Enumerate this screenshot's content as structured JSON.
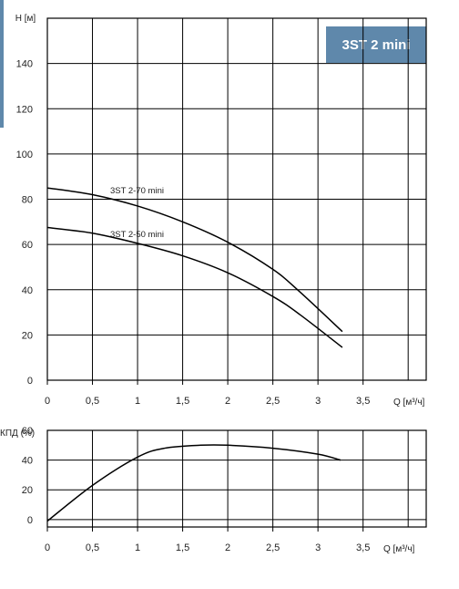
{
  "badge": {
    "label": "3ST 2 mini",
    "color": "#5f88ab"
  },
  "chart_data": [
    {
      "type": "line",
      "ylabel": "H [м]",
      "xlabel": "Q [м³/ч]",
      "xlim": [
        0,
        4.2
      ],
      "ylim": [
        0,
        160
      ],
      "x_ticks": [
        0,
        0.5,
        1,
        1.5,
        2,
        2.5,
        3,
        3.5
      ],
      "x_tick_labels": [
        "0",
        "0,5",
        "1",
        "1,5",
        "2",
        "2,5",
        "3",
        "3,5"
      ],
      "y_ticks": [
        0,
        20,
        40,
        60,
        80,
        100,
        120,
        140
      ],
      "y_tick_labels": [
        "0",
        "20",
        "40",
        "60",
        "80",
        "100",
        "120",
        "140"
      ],
      "grid": true,
      "series": [
        {
          "name": "3ST 2-70 mini",
          "x": [
            0,
            0.5,
            1,
            1.5,
            2,
            2.5,
            2.8,
            3.27
          ],
          "y": [
            85,
            82,
            77,
            70,
            61,
            49,
            39,
            21.5
          ]
        },
        {
          "name": "3ST 2-50 mini",
          "x": [
            0,
            0.5,
            1,
            1.5,
            2,
            2.5,
            2.8,
            3.27
          ],
          "y": [
            67.5,
            65,
            60.5,
            55,
            47.5,
            37,
            29,
            14.5
          ]
        }
      ]
    },
    {
      "type": "line",
      "ylabel": "КПД (%)",
      "xlabel": "Q [м³/ч]",
      "xlim": [
        0,
        4.2
      ],
      "ylim": [
        -5,
        60
      ],
      "x_ticks": [
        0,
        0.5,
        1,
        1.5,
        2,
        2.5,
        3,
        3.5
      ],
      "x_tick_labels": [
        "0",
        "0,5",
        "1",
        "1,5",
        "2",
        "2,5",
        "3",
        "3,5"
      ],
      "y_ticks": [
        0,
        20,
        40,
        60
      ],
      "y_tick_labels": [
        "0",
        "20",
        "40",
        "60"
      ],
      "grid": true,
      "series": [
        {
          "x": [
            0,
            0.5,
            1,
            1.3,
            1.7,
            2,
            2.5,
            3,
            3.25
          ],
          "y": [
            -1,
            23,
            42,
            48,
            50,
            50,
            48,
            44,
            40
          ]
        }
      ]
    }
  ]
}
